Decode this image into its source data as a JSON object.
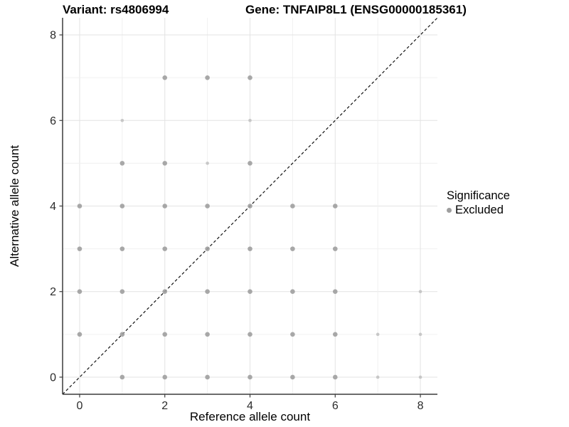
{
  "header": {
    "variant_title": "Variant: rs4806994",
    "gene_title": "Gene: TNFAIP8L1 (ENSG00000185361)"
  },
  "legend": {
    "title": "Significance",
    "items": [
      {
        "label": "Excluded",
        "color": "#9e9e9e"
      }
    ]
  },
  "colors": {
    "grid_major": "#e3e3e3",
    "grid_minor": "#f0f0f0",
    "axis_line": "#3c3c3c",
    "tick_text": "#2b2b2b",
    "axis_title_text": "#000000"
  },
  "chart_data": {
    "type": "scatter",
    "variant_title": "Variant: rs4806994",
    "gene_title": "Gene: TNFAIP8L1 (ENSG00000185361)",
    "xlabel": "Reference allele count",
    "ylabel": "Alternative allele count",
    "xlim": [
      -0.4,
      8.4
    ],
    "ylim": [
      -0.4,
      8.4
    ],
    "x_ticks": [
      0,
      2,
      4,
      6,
      8
    ],
    "y_ticks": [
      0,
      2,
      4,
      6,
      8
    ],
    "grid_values": [
      0,
      1,
      2,
      3,
      4,
      5,
      6,
      7,
      8
    ],
    "major_grid": [
      0,
      2,
      4,
      6,
      8
    ],
    "grid_on": true,
    "legend_position": "right",
    "identity_line": {
      "style": "dashed",
      "color": "#111111"
    },
    "point_styles": {
      "m": {
        "r": 3.3,
        "color": "#9e9e9e",
        "opacity": 0.9
      },
      "s": {
        "r": 2.3,
        "color": "#c2c2c2",
        "opacity": 0.9
      }
    },
    "series": [
      {
        "name": "Excluded",
        "significance": "Excluded",
        "points": [
          [
            1,
            0,
            "m"
          ],
          [
            2,
            0,
            "m"
          ],
          [
            3,
            0,
            "m"
          ],
          [
            4,
            0,
            "m"
          ],
          [
            5,
            0,
            "m"
          ],
          [
            6,
            0,
            "m"
          ],
          [
            7,
            0,
            "s"
          ],
          [
            8,
            0,
            "s"
          ],
          [
            0,
            1,
            "m"
          ],
          [
            1,
            1,
            "m"
          ],
          [
            2,
            1,
            "m"
          ],
          [
            3,
            1,
            "m"
          ],
          [
            4,
            1,
            "m"
          ],
          [
            5,
            1,
            "m"
          ],
          [
            6,
            1,
            "m"
          ],
          [
            7,
            1,
            "s"
          ],
          [
            8,
            1,
            "s"
          ],
          [
            0,
            2,
            "m"
          ],
          [
            1,
            2,
            "m"
          ],
          [
            2,
            2,
            "m"
          ],
          [
            3,
            2,
            "m"
          ],
          [
            4,
            2,
            "m"
          ],
          [
            5,
            2,
            "m"
          ],
          [
            6,
            2,
            "m"
          ],
          [
            8,
            2,
            "s"
          ],
          [
            0,
            3,
            "m"
          ],
          [
            1,
            3,
            "m"
          ],
          [
            2,
            3,
            "m"
          ],
          [
            3,
            3,
            "m"
          ],
          [
            4,
            3,
            "m"
          ],
          [
            5,
            3,
            "m"
          ],
          [
            6,
            3,
            "m"
          ],
          [
            0,
            4,
            "m"
          ],
          [
            1,
            4,
            "m"
          ],
          [
            2,
            4,
            "m"
          ],
          [
            3,
            4,
            "m"
          ],
          [
            4,
            4,
            "m"
          ],
          [
            5,
            4,
            "m"
          ],
          [
            6,
            4,
            "m"
          ],
          [
            1,
            5,
            "m"
          ],
          [
            2,
            5,
            "m"
          ],
          [
            3,
            5,
            "s"
          ],
          [
            4,
            5,
            "m"
          ],
          [
            1,
            6,
            "s"
          ],
          [
            4,
            6,
            "s"
          ],
          [
            2,
            7,
            "m"
          ],
          [
            3,
            7,
            "m"
          ],
          [
            4,
            7,
            "m"
          ]
        ]
      }
    ]
  }
}
